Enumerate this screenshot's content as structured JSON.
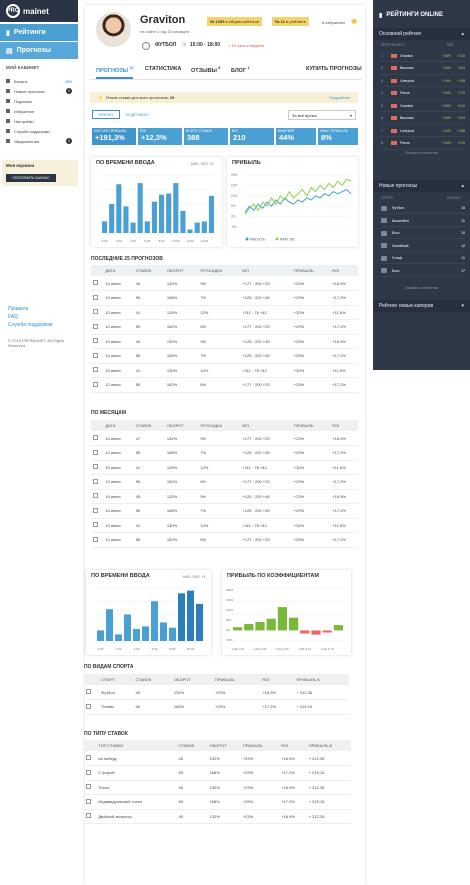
{
  "brand": {
    "logo_short": "PRO",
    "logo_text": "mainet"
  },
  "sidebar": {
    "nav": [
      {
        "label": "Рейтинги"
      },
      {
        "label": "Прогнозы"
      }
    ],
    "cabinet_title": "МОЙ КАБИНЕТ",
    "items": [
      {
        "label": "Баланс",
        "value": "$80"
      },
      {
        "label": "Новые прогнозы",
        "value": "2"
      },
      {
        "label": "Подписки",
        "value": ""
      },
      {
        "label": "Избранное",
        "value": ""
      },
      {
        "label": "Настройки",
        "value": ""
      },
      {
        "label": "Служба поддержки",
        "value": ""
      },
      {
        "label": "Уведомления",
        "value": "3"
      }
    ],
    "basket_title": "Моя корзина",
    "basket_button": "ПОПОЛНИТЬ БАЛАНС",
    "footer_links": [
      "Правила",
      "FAQ",
      "Служба поддержки"
    ],
    "copyright": "© 2016 PROMAINET. All Rights Reserved"
  },
  "profile": {
    "name": "Graviton",
    "subtitle": "на сайте 1 год 10 месяцев",
    "badge1": "№ 1299",
    "badge1_text": "в общем рейтинге",
    "badge2": "№ 12",
    "badge2_text": "в рейтинге",
    "favorites": "в избранных",
    "sport": "ФУТБОЛ",
    "time": "15:00 - 18:00",
    "time_note": "+ 10 часа в неделю"
  },
  "tabs": [
    {
      "label": "ПРОГНОЗЫ",
      "count": "10"
    },
    {
      "label": "СТАТИСТИКА",
      "count": ""
    },
    {
      "label": "ОТЗЫВЫ",
      "count": "8"
    },
    {
      "label": "БЛОГ",
      "count": "1"
    }
  ],
  "buy_button": "КУПИТЬ ПРОГНОЗЫ",
  "promo": {
    "text": "Разом ставки для всех прогнозов:",
    "value": "29",
    "link": "Подробнее"
  },
  "subtabs": {
    "active": "КРАТКО",
    "other": "ПОДРОБНО"
  },
  "period_select": "За всё время",
  "stats": [
    {
      "label": "ЧИСТАЯ ПРИБЫЛЬ",
      "value": "+191,3%"
    },
    {
      "label": "ROI",
      "value": "+12,3%"
    },
    {
      "label": "ВСЕГО СТАВОК",
      "value": "388"
    },
    {
      "label": "В/П",
      "value": "210"
    },
    {
      "label": "ВИНРЕЙТ",
      "value": "44%"
    },
    {
      "label": "МАКС ПРИБЫЛЬ",
      "value": "8%"
    }
  ],
  "chart1": {
    "title": "ПО ВРЕМЕНИ ВВОДА",
    "note": "MSK, GMT +3",
    "chart_data": {
      "type": "bar",
      "categories": [
        "0:00",
        "1:00",
        "2:00",
        "3:00",
        "4:00",
        "5:00",
        "6:00",
        "7:00",
        "8:00",
        "9:00",
        "10:00",
        "11:00",
        "12:00",
        "13:00",
        "14:00",
        "15:00"
      ],
      "values": [
        10,
        25,
        42,
        23,
        9,
        43,
        10,
        27,
        33,
        34,
        43,
        19,
        3,
        9,
        10,
        32
      ],
      "ylim": [
        0,
        50
      ]
    }
  },
  "chart2": {
    "title": "ПРИБЫЛЬ",
    "legend": [
      "КАК ЕСТЬ",
      "ФЛАТ 200"
    ],
    "ticks": [
      "20%",
      "15%",
      "10%",
      "5%",
      "0%",
      "-5%"
    ],
    "chart_data": {
      "type": "line",
      "ylim": [
        -5,
        20
      ],
      "series": [
        {
          "name": "КАК ЕСТЬ",
          "values": [
            2,
            5,
            3,
            6,
            4,
            7,
            5,
            8,
            6,
            9,
            7,
            6,
            8,
            7,
            9,
            8,
            10,
            9,
            11,
            10,
            12,
            11,
            12,
            13,
            11
          ]
        },
        {
          "name": "ФЛАТ 200",
          "values": [
            1,
            4,
            6,
            3,
            7,
            5,
            9,
            6,
            10,
            8,
            12,
            9,
            11,
            13,
            10,
            14,
            12,
            15,
            13,
            16,
            14,
            17,
            15,
            18,
            17
          ]
        }
      ]
    }
  },
  "table1": {
    "title": "ПОСЛЕДНИЕ 25 ПРОГНОЗОВ",
    "headers": [
      "",
      "ДАТА",
      "СТАВОК",
      "ОБОРОТ",
      "ПРОСАДКА",
      "В/П",
      "ПРИБЫЛЬ",
      "ROI"
    ],
    "rows": [
      {
        "date": "14 июля",
        "bets": "45",
        "turnover": "132%",
        "draw": "9%",
        "wl": "+177 · 200 +23",
        "profit": "+23%",
        "roi": "+16.9%"
      },
      {
        "date": "14 июля",
        "bets": "55",
        "turnover": "168%",
        "draw": "7%",
        "wl": "+125 · 220 +45",
        "profit": "+29%",
        "roi": "+17.2%"
      },
      {
        "date": "13 июля",
        "bets": "41",
        "turnover": "128%",
        "draw": "12%",
        "wl": "+111 · 78 +42",
        "profit": "+32%",
        "roi": "+11.6%"
      },
      {
        "date": "12 июля",
        "bets": "59",
        "turnover": "162%",
        "draw": "6%",
        "wl": "+177 · 200 +23",
        "profit": "+29%",
        "roi": "+17.2%"
      },
      {
        "date": "14 июля",
        "bets": "45",
        "turnover": "132%",
        "draw": "9%",
        "wl": "+125 · 220 +45",
        "profit": "+23%",
        "roi": "+16.9%"
      },
      {
        "date": "14 июля",
        "bets": "55",
        "turnover": "168%",
        "draw": "7%",
        "wl": "+125 · 220 +45",
        "profit": "+29%",
        "roi": "+17.2%"
      },
      {
        "date": "13 июля",
        "bets": "41",
        "turnover": "130%",
        "draw": "12%",
        "wl": "+111 · 78 +42",
        "profit": "+32%",
        "roi": "+11.6%"
      },
      {
        "date": "12 июля",
        "bets": "55",
        "turnover": "162%",
        "draw": "6%",
        "wl": "+177 · 200 +23",
        "profit": "+29%",
        "roi": "+17.2%"
      }
    ]
  },
  "table2": {
    "title": "ПО МЕСЯЦАМ",
    "headers": [
      "",
      "ДАТА",
      "СТАВОК",
      "ОБОРОТ",
      "ПРОСАДКА",
      "В/П",
      "ПРИБЫЛЬ",
      "ROI"
    ],
    "rows": [
      {
        "date": "14 июля",
        "bets": "47",
        "turnover": "132%",
        "draw": "9%",
        "wl": "+177 · 200 +23",
        "profit": "+23%",
        "roi": "+16.9%"
      },
      {
        "date": "14 июля",
        "bets": "55",
        "turnover": "168%",
        "draw": "7%",
        "wl": "+125 · 220 +45",
        "profit": "+29%",
        "roi": "+17.2%"
      },
      {
        "date": "13 июля",
        "bets": "41",
        "turnover": "128%",
        "draw": "12%",
        "wl": "+111 · 78 +42",
        "profit": "+32%",
        "roi": "+11.6%"
      },
      {
        "date": "12 июля",
        "bets": "55",
        "turnover": "162%",
        "draw": "6%",
        "wl": "+177 · 200 +23",
        "profit": "+29%",
        "roi": "+17.2%"
      },
      {
        "date": "14 июля",
        "bets": "45",
        "turnover": "132%",
        "draw": "9%",
        "wl": "+125 · 220 +45",
        "profit": "+23%",
        "roi": "+16.9%"
      },
      {
        "date": "14 июля",
        "bets": "55",
        "turnover": "168%",
        "draw": "7%",
        "wl": "+125 · 220 +45",
        "profit": "+29%",
        "roi": "+17.2%"
      },
      {
        "date": "13 июля",
        "bets": "41",
        "turnover": "130%",
        "draw": "12%",
        "wl": "+111 · 78 +42",
        "profit": "+32%",
        "roi": "+11.6%"
      },
      {
        "date": "12 июля",
        "bets": "55",
        "turnover": "162%",
        "draw": "6%",
        "wl": "+177 · 200 +23",
        "profit": "+29%",
        "roi": "+17.2%"
      }
    ]
  },
  "chart3": {
    "title": "ПО ВРЕМЕНИ ВВОДА",
    "note": "MSK, GMT +3",
    "chart_data": {
      "type": "bar",
      "categories": [
        "0:00",
        "1:00",
        "2:00",
        "3:00",
        "4:00",
        "5:00",
        "6:00",
        "7:00",
        "8:00",
        "9:00",
        "10:00",
        "11:00"
      ],
      "values": [
        8,
        24,
        5,
        20,
        9,
        11,
        30,
        14,
        10,
        36,
        38,
        28
      ],
      "ylim": [
        0,
        40
      ]
    }
  },
  "chart4": {
    "title": "ПРИБЫЛЬ ПО КОЭФФИЦИЕНТАМ",
    "ticks": [
      "200%",
      "150%",
      "100%",
      "50%",
      "0%",
      "-50%"
    ],
    "chart_data": {
      "type": "bar",
      "categories": [
        "1,00-1,30",
        "1,30-1,60",
        "1,60-1,90",
        "1,90-2,20",
        "2,20-2,50",
        "2,50-2,80",
        "2,80-3,10",
        "3,10-3,40",
        "3,40-3,70",
        "3,70+"
      ],
      "values": [
        15,
        30,
        40,
        55,
        110,
        60,
        -15,
        -20,
        -10,
        25
      ],
      "ylim": [
        -50,
        200
      ]
    }
  },
  "table3": {
    "title": "ПО ВИДАМ СПОРТА",
    "headers": [
      "",
      "СПОРТ",
      "СТАВОК",
      "ОБОРОТ",
      "ПРИБЫЛЬ",
      "ROI",
      "ПРИБЫЛЬ $"
    ],
    "rows": [
      {
        "name": "Футбол",
        "bets": "45",
        "turnover": "132%",
        "profit": "+23%",
        "roi": "+16.9%",
        "usd": "+ 212,35"
      },
      {
        "name": "Теннис",
        "bets": "55",
        "turnover": "168%",
        "profit": "+29%",
        "roi": "+17.2%",
        "usd": "+ 219,15"
      }
    ]
  },
  "table4": {
    "title": "ПО ТИПУ СТАВОК",
    "headers": [
      "",
      "ТИП СТАВКИ",
      "СТАВОК",
      "ОБОРОТ",
      "ПРИБЫЛЬ",
      "ROI",
      "ПРИБЫЛЬ $"
    ],
    "rows": [
      {
        "name": "на победу",
        "bets": "45",
        "turnover": "132%",
        "profit": "+23%",
        "roi": "+16.9%",
        "usd": "+ 212,35"
      },
      {
        "name": "С форой",
        "bets": "55",
        "turnover": "168%",
        "profit": "+29%",
        "roi": "+17.2%",
        "usd": "+ 219,15"
      },
      {
        "name": "Тотал",
        "bets": "45",
        "turnover": "132%",
        "profit": "+23%",
        "roi": "+16.9%",
        "usd": "+ 212,35"
      },
      {
        "name": "Индивидуальный тотал",
        "bets": "55",
        "turnover": "168%",
        "profit": "+29%",
        "roi": "+17.2%",
        "usd": "+ 219,15"
      },
      {
        "name": "Двойной экспресс",
        "bets": "45",
        "turnover": "132%",
        "profit": "+23%",
        "roi": "+16.9%",
        "usd": "+ 212,35"
      }
    ]
  },
  "right_panel": {
    "title": "РЕЙТИНГИ ONLINE",
    "section1": "Основной рейтинг",
    "rating_cols": [
      "ПРОГНОЗИСТ",
      "ROI"
    ],
    "ratings": [
      {
        "num": "1",
        "name": "Graviton",
        "roi": "+16%",
        "val": "+210"
      },
      {
        "num": "2",
        "name": "Bazooka",
        "roi": "+16%",
        "val": "+204"
      },
      {
        "num": "3",
        "name": "Liverpool",
        "roi": "+14%",
        "val": "+198"
      },
      {
        "num": "4",
        "name": "Pavos",
        "roi": "+13%",
        "val": "+170"
      },
      {
        "num": "5",
        "name": "Graviton",
        "roi": "+16%",
        "val": "+210"
      },
      {
        "num": "6",
        "name": "Bazooka",
        "roi": "+16%",
        "val": "+204"
      },
      {
        "num": "7",
        "name": "Liverpool",
        "roi": "+14%",
        "val": "+198"
      },
      {
        "num": "8",
        "name": "Pavos",
        "roi": "+13%",
        "val": "+170"
      }
    ],
    "more1": "Показать полностью",
    "section2": "Новые прогнозы",
    "new_cols": [
      "СПОРТ",
      "КОЛ-ВО"
    ],
    "new": [
      {
        "name": "Футбол",
        "count": "15"
      },
      {
        "name": "Баскетбол",
        "count": "11"
      },
      {
        "name": "Бокс",
        "count": "10"
      },
      {
        "name": "Линейный",
        "count": "12"
      },
      {
        "name": "Гольф",
        "count": "11"
      },
      {
        "name": "Бокс",
        "count": "17"
      }
    ],
    "more2": "Показать полностью",
    "section3": "Рейтинг новых каперов"
  }
}
